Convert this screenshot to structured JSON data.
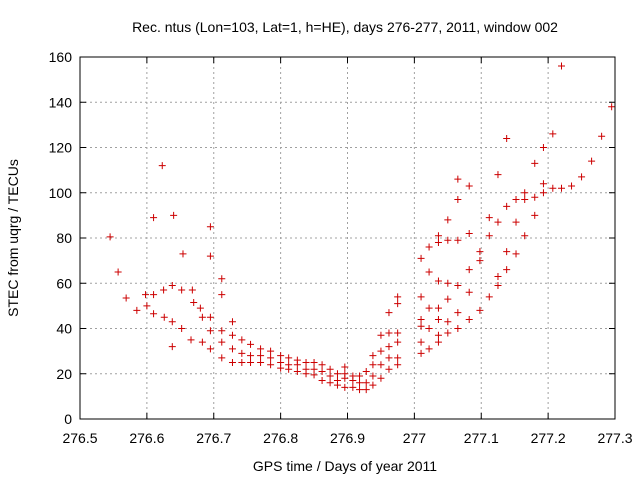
{
  "chart_data": {
    "type": "scatter",
    "title": "Rec. ntus (Lon=103, Lat=1, h=HE), days 276-277, 2011, window 002",
    "xlabel": "GPS time / Days of year 2011",
    "ylabel": "STEC from uqrg / TECUs",
    "xlim": [
      276.5,
      277.3
    ],
    "ylim": [
      0,
      160
    ],
    "xticks": [
      276.5,
      276.6,
      276.7,
      276.8,
      276.9,
      277.0,
      277.1,
      277.2,
      277.3
    ],
    "xtick_labels": [
      "276.5",
      "276.6",
      "276.7",
      "276.8",
      "276.9",
      "277",
      "277.1",
      "277.2",
      "277.3"
    ],
    "yticks": [
      0,
      20,
      40,
      60,
      80,
      100,
      120,
      140,
      160
    ],
    "ytick_labels": [
      "0",
      "20",
      "40",
      "60",
      "80",
      "100",
      "120",
      "140",
      "160"
    ],
    "grid": true,
    "marker": "+",
    "marker_color": "#cc0000",
    "series": [
      {
        "points": [
          [
            276.545,
            80.5
          ],
          [
            276.557,
            65
          ],
          [
            276.569,
            53.5
          ],
          [
            276.585,
            48
          ],
          [
            276.598,
            55
          ],
          [
            276.6,
            50
          ],
          [
            276.61,
            89
          ],
          [
            276.61,
            55
          ],
          [
            276.61,
            46.5
          ],
          [
            276.623,
            112
          ],
          [
            276.625,
            57
          ],
          [
            276.626,
            45
          ],
          [
            276.64,
            90
          ],
          [
            276.638,
            59
          ],
          [
            276.638,
            43
          ],
          [
            276.638,
            32
          ],
          [
            276.654,
            73
          ],
          [
            276.652,
            57
          ],
          [
            276.652,
            40
          ],
          [
            276.668,
            57
          ],
          [
            276.67,
            51.5
          ],
          [
            276.666,
            35
          ],
          [
            276.68,
            49
          ],
          [
            276.683,
            45
          ],
          [
            276.683,
            34
          ],
          [
            276.695,
            85
          ],
          [
            276.695,
            72
          ],
          [
            276.695,
            45
          ],
          [
            276.695,
            39
          ],
          [
            276.695,
            31
          ],
          [
            276.712,
            62
          ],
          [
            276.712,
            55
          ],
          [
            276.712,
            39
          ],
          [
            276.712,
            34
          ],
          [
            276.712,
            27
          ],
          [
            276.728,
            43
          ],
          [
            276.728,
            37
          ],
          [
            276.728,
            31
          ],
          [
            276.728,
            25
          ],
          [
            276.742,
            35
          ],
          [
            276.742,
            29
          ],
          [
            276.742,
            25
          ],
          [
            276.755,
            33
          ],
          [
            276.755,
            28
          ],
          [
            276.755,
            25
          ],
          [
            276.77,
            31
          ],
          [
            276.77,
            28
          ],
          [
            276.77,
            25
          ],
          [
            276.785,
            30
          ],
          [
            276.785,
            27
          ],
          [
            276.785,
            24
          ],
          [
            276.8,
            28
          ],
          [
            276.8,
            25
          ],
          [
            276.8,
            22.5
          ],
          [
            276.812,
            27
          ],
          [
            276.812,
            24
          ],
          [
            276.812,
            22
          ],
          [
            276.825,
            26
          ],
          [
            276.825,
            24
          ],
          [
            276.825,
            21
          ],
          [
            276.838,
            25
          ],
          [
            276.838,
            22
          ],
          [
            276.838,
            20
          ],
          [
            276.85,
            25
          ],
          [
            276.85,
            22
          ],
          [
            276.85,
            19.5
          ],
          [
            276.862,
            24
          ],
          [
            276.862,
            21
          ],
          [
            276.862,
            17
          ],
          [
            276.874,
            22
          ],
          [
            276.874,
            19
          ],
          [
            276.874,
            16
          ],
          [
            276.885,
            20
          ],
          [
            276.885,
            17
          ],
          [
            276.885,
            15
          ],
          [
            276.896,
            23
          ],
          [
            276.896,
            20
          ],
          [
            276.896,
            18
          ],
          [
            276.896,
            14
          ],
          [
            276.908,
            19
          ],
          [
            276.908,
            17
          ],
          [
            276.908,
            14
          ],
          [
            276.918,
            19
          ],
          [
            276.918,
            16
          ],
          [
            276.918,
            13
          ],
          [
            276.928,
            21
          ],
          [
            276.928,
            16
          ],
          [
            276.928,
            13
          ],
          [
            276.938,
            28
          ],
          [
            276.938,
            24
          ],
          [
            276.938,
            19
          ],
          [
            276.938,
            15
          ],
          [
            276.95,
            37
          ],
          [
            276.95,
            30
          ],
          [
            276.95,
            24
          ],
          [
            276.95,
            18
          ],
          [
            276.962,
            47
          ],
          [
            276.962,
            38
          ],
          [
            276.962,
            32
          ],
          [
            276.962,
            27
          ],
          [
            276.962,
            22
          ],
          [
            276.975,
            54
          ],
          [
            276.975,
            51
          ],
          [
            276.975,
            38
          ],
          [
            276.975,
            34
          ],
          [
            276.975,
            27
          ],
          [
            276.975,
            24
          ],
          [
            277.01,
            71
          ],
          [
            277.01,
            54
          ],
          [
            277.01,
            44
          ],
          [
            277.01,
            41
          ],
          [
            277.01,
            34
          ],
          [
            277.01,
            29
          ],
          [
            277.022,
            76
          ],
          [
            277.022,
            65
          ],
          [
            277.022,
            49
          ],
          [
            277.022,
            40
          ],
          [
            277.022,
            31
          ],
          [
            277.036,
            81
          ],
          [
            277.036,
            78
          ],
          [
            277.036,
            61
          ],
          [
            277.036,
            49
          ],
          [
            277.036,
            44
          ],
          [
            277.036,
            37
          ],
          [
            277.036,
            34
          ],
          [
            277.05,
            88
          ],
          [
            277.05,
            79
          ],
          [
            277.05,
            60
          ],
          [
            277.05,
            53
          ],
          [
            277.05,
            43
          ],
          [
            277.05,
            38
          ],
          [
            277.065,
            106
          ],
          [
            277.065,
            97
          ],
          [
            277.065,
            79
          ],
          [
            277.065,
            59
          ],
          [
            277.065,
            47
          ],
          [
            277.065,
            40
          ],
          [
            277.082,
            103
          ],
          [
            277.082,
            82
          ],
          [
            277.082,
            66
          ],
          [
            277.082,
            56
          ],
          [
            277.082,
            44
          ],
          [
            277.098,
            74
          ],
          [
            277.098,
            70
          ],
          [
            277.098,
            48
          ],
          [
            277.112,
            89
          ],
          [
            277.112,
            81
          ],
          [
            277.112,
            54
          ],
          [
            277.125,
            108
          ],
          [
            277.125,
            87
          ],
          [
            277.125,
            63
          ],
          [
            277.125,
            59
          ],
          [
            277.138,
            124
          ],
          [
            277.138,
            94
          ],
          [
            277.138,
            74
          ],
          [
            277.138,
            66
          ],
          [
            277.152,
            97
          ],
          [
            277.152,
            87
          ],
          [
            277.152,
            73
          ],
          [
            277.165,
            100
          ],
          [
            277.165,
            97
          ],
          [
            277.165,
            81
          ],
          [
            277.18,
            113
          ],
          [
            277.18,
            98
          ],
          [
            277.18,
            90
          ],
          [
            277.193,
            120
          ],
          [
            277.193,
            104
          ],
          [
            277.193,
            100
          ],
          [
            277.207,
            126
          ],
          [
            277.207,
            102
          ],
          [
            277.22,
            156
          ],
          [
            277.22,
            102
          ],
          [
            277.235,
            103
          ],
          [
            277.25,
            107
          ],
          [
            277.265,
            114
          ],
          [
            277.28,
            125
          ],
          [
            277.295,
            138
          ]
        ]
      }
    ]
  }
}
